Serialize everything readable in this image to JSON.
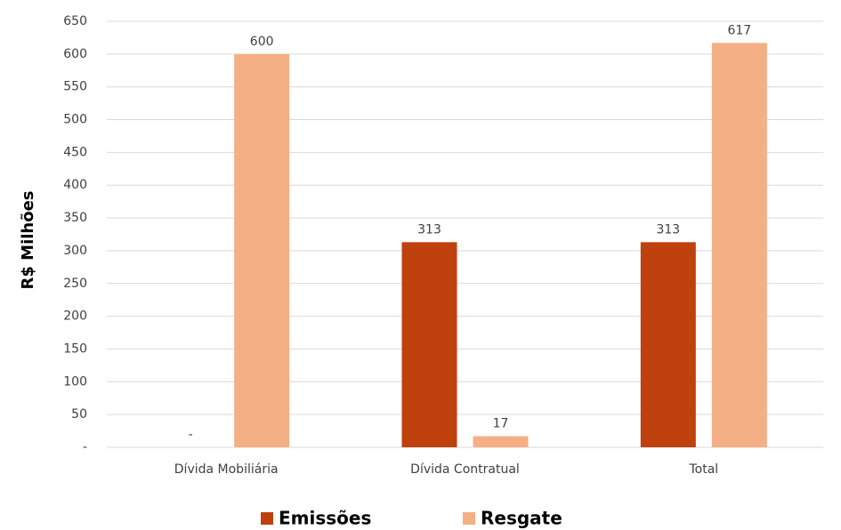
{
  "chart_data": {
    "type": "bar",
    "y_label": "R$ Milhões",
    "categories": [
      "Dívida Mobiliária",
      "Dívida Contratual",
      "Total"
    ],
    "series": [
      {
        "name": "Emissões",
        "color": "#bf410e",
        "values": [
          0,
          313,
          313
        ],
        "value_labels": [
          "-",
          "313",
          "313"
        ]
      },
      {
        "name": "Resgate",
        "color": "#f4af84",
        "values": [
          600,
          17,
          617
        ]
      }
    ],
    "ylim": [
      0,
      650
    ],
    "yticks": [
      {
        "value": 0,
        "label": "-"
      },
      50,
      100,
      150,
      200,
      250,
      300,
      350,
      400,
      450,
      500,
      550,
      600,
      650
    ],
    "grid": true
  }
}
